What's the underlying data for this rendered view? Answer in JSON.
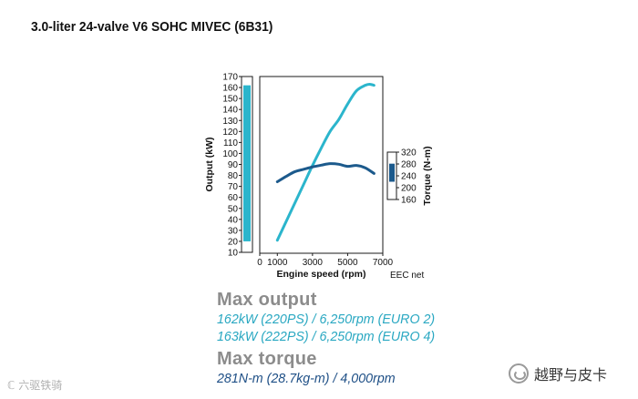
{
  "title": "3.0-liter 24-valve V6 SOHC MIVEC (6B31)",
  "colors": {
    "output": "#2bb5cc",
    "torque": "#1c5a8c",
    "frame": "#1a1a1a"
  },
  "chart_data": {
    "type": "line",
    "title": "3.0-liter 24-valve V6 SOHC MIVEC (6B31)",
    "xlabel": "Engine speed (rpm)",
    "xlim": [
      0,
      7000
    ],
    "x_ticks": [
      "0",
      "1000",
      "3000",
      "5000",
      "7000"
    ],
    "ylabel_left": "Output (kW)",
    "ylim_left": [
      10,
      170
    ],
    "y_ticks_left": [
      "10",
      "20",
      "30",
      "40",
      "50",
      "60",
      "70",
      "80",
      "90",
      "100",
      "110",
      "120",
      "130",
      "140",
      "150",
      "160",
      "170"
    ],
    "ylabel_right": "Torque (N-m)",
    "ylim_right": [
      160,
      320
    ],
    "y_ticks_right": [
      "160",
      "200",
      "240",
      "280",
      "320"
    ],
    "note": "EEC net",
    "series": [
      {
        "name": "Output (kW)",
        "axis": "left",
        "x": [
          1000,
          1500,
          2000,
          2500,
          3000,
          3500,
          4000,
          4500,
          5000,
          5500,
          6000,
          6250,
          6500
        ],
        "values": [
          21,
          38,
          55,
          72,
          89,
          105,
          120,
          131,
          145,
          157,
          162,
          163,
          162
        ]
      },
      {
        "name": "Torque (N-m)",
        "axis": "right",
        "x": [
          1000,
          1500,
          2000,
          2500,
          3000,
          3500,
          4000,
          4500,
          5000,
          5500,
          6000,
          6500
        ],
        "values": [
          220,
          238,
          254,
          262,
          270,
          276,
          281,
          279,
          272,
          275,
          267,
          248
        ]
      }
    ],
    "output_band": [
      20,
      162
    ],
    "torque_band": [
      220,
      281
    ]
  },
  "specs": {
    "max_output_label": "Max output",
    "max_output_line1": "162kW (220PS) / 6,250rpm (EURO 2)",
    "max_output_line2": "163kW (222PS) / 6,250rpm (EURO 4)",
    "max_torque_label": "Max torque",
    "max_torque_line": "281N-m (28.7kg-m) / 4,000rpm"
  },
  "watermarks": {
    "left": "ℂ 六驱铁骑",
    "right": "越野与皮卡"
  }
}
